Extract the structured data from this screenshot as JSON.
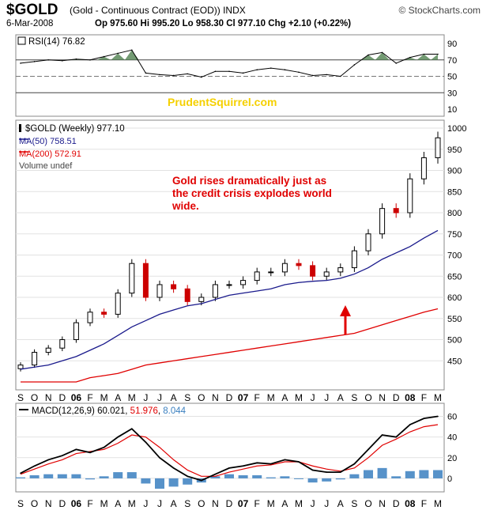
{
  "header": {
    "symbol": "$GOLD",
    "description": "(Gold - Continuous Contract (EOD)) INDX",
    "brand": "© StockCharts.com",
    "date": "6-Mar-2008",
    "quote": "Op 975.60   Hi 995.20   Lo 958.30   Cl 977.10   Chg +2.10 (+0.22%)"
  },
  "watermark": "PrudentSquirrel.com",
  "annotation": {
    "lines": [
      "Gold rises dramatically just as",
      "the credit crisis explodes world",
      "wide."
    ],
    "color": "#e00000"
  },
  "colors": {
    "up": "#000000",
    "down": "#cc0000",
    "ma50": "#1a1a8c",
    "ma200": "#e00000",
    "macd_line": "#000000",
    "signal_line": "#e00000",
    "hist": "#3a7fbf",
    "rsi_fill": "#5a8a5a"
  },
  "x_axis": {
    "labels": [
      "S",
      "O",
      "N",
      "D",
      "06",
      "F",
      "M",
      "A",
      "M",
      "J",
      "J",
      "A",
      "S",
      "O",
      "N",
      "D",
      "07",
      "F",
      "M",
      "A",
      "M",
      "J",
      "J",
      "A",
      "S",
      "O",
      "N",
      "D",
      "08",
      "F",
      "M"
    ]
  },
  "chart_data": [
    {
      "type": "line",
      "panel": "rsi",
      "legend": "RSI(14) 76.82",
      "y_ticks": [
        90,
        70,
        50,
        30,
        10
      ],
      "ylim": [
        0,
        100
      ],
      "reference_lines": [
        70,
        50,
        30
      ],
      "x": [
        "2005-09",
        "2005-10",
        "2005-11",
        "2005-12",
        "2006-01",
        "2006-02",
        "2006-03",
        "2006-04",
        "2006-05",
        "2006-06",
        "2006-07",
        "2006-08",
        "2006-09",
        "2006-10",
        "2006-11",
        "2006-12",
        "2007-01",
        "2007-02",
        "2007-03",
        "2007-04",
        "2007-05",
        "2007-06",
        "2007-07",
        "2007-08",
        "2007-09",
        "2007-10",
        "2007-11",
        "2007-12",
        "2008-01",
        "2008-02",
        "2008-03"
      ],
      "values": [
        66,
        68,
        70,
        69,
        71,
        70,
        74,
        78,
        82,
        54,
        52,
        51,
        53,
        49,
        56,
        56,
        54,
        58,
        60,
        58,
        55,
        51,
        52,
        50,
        64,
        76,
        79,
        66,
        73,
        77,
        77
      ]
    },
    {
      "type": "line",
      "panel": "price",
      "legend": [
        "$GOLD (Weekly) 977.10",
        "MA(50) 758.51",
        "MA(200) 572.91",
        "Volume undef"
      ],
      "y_ticks": [
        1000,
        950,
        900,
        850,
        800,
        750,
        700,
        650,
        600,
        550,
        500,
        450
      ],
      "ylim": [
        405,
        1005
      ],
      "x": [
        "2005-09",
        "2005-10",
        "2005-11",
        "2005-12",
        "2006-01",
        "2006-02",
        "2006-03",
        "2006-04",
        "2006-05",
        "2006-06",
        "2006-07",
        "2006-08",
        "2006-09",
        "2006-10",
        "2006-11",
        "2006-12",
        "2007-01",
        "2007-02",
        "2007-03",
        "2007-04",
        "2007-05",
        "2007-06",
        "2007-07",
        "2007-08",
        "2007-09",
        "2007-10",
        "2007-11",
        "2007-12",
        "2008-01",
        "2008-02",
        "2008-03"
      ],
      "series": [
        {
          "name": "$GOLD (Weekly) 977.10",
          "values": [
            440,
            470,
            480,
            500,
            540,
            565,
            560,
            610,
            680,
            600,
            630,
            620,
            590,
            600,
            630,
            630,
            640,
            660,
            660,
            680,
            675,
            650,
            660,
            670,
            710,
            750,
            810,
            800,
            880,
            930,
            977
          ]
        },
        {
          "name": "MA(50) 758.51",
          "values": [
            430,
            435,
            440,
            450,
            460,
            475,
            490,
            510,
            530,
            545,
            560,
            570,
            580,
            585,
            595,
            605,
            610,
            615,
            620,
            630,
            635,
            638,
            640,
            645,
            655,
            670,
            690,
            705,
            720,
            740,
            758
          ]
        },
        {
          "name": "MA(200) 572.91",
          "values": [
            380,
            385,
            390,
            395,
            400,
            410,
            415,
            420,
            430,
            440,
            445,
            450,
            455,
            460,
            465,
            470,
            475,
            480,
            485,
            490,
            495,
            500,
            505,
            510,
            515,
            525,
            535,
            545,
            555,
            565,
            573
          ]
        }
      ]
    },
    {
      "type": "line",
      "panel": "macd",
      "legend": {
        "label": "MACD(12,26,9)",
        "macd": "60.021",
        "signal": "51.976",
        "hist": "8.044"
      },
      "y_ticks": [
        60,
        40,
        20,
        0
      ],
      "ylim": [
        -10,
        65
      ],
      "x": [
        "2005-09",
        "2005-10",
        "2005-11",
        "2005-12",
        "2006-01",
        "2006-02",
        "2006-03",
        "2006-04",
        "2006-05",
        "2006-06",
        "2006-07",
        "2006-08",
        "2006-09",
        "2006-10",
        "2006-11",
        "2006-12",
        "2007-01",
        "2007-02",
        "2007-03",
        "2007-04",
        "2007-05",
        "2007-06",
        "2007-07",
        "2007-08",
        "2007-09",
        "2007-10",
        "2007-11",
        "2007-12",
        "2008-01",
        "2008-02",
        "2008-03"
      ],
      "series": [
        {
          "name": "MACD(12,26,9)",
          "values": [
            5,
            12,
            18,
            22,
            28,
            25,
            30,
            40,
            48,
            35,
            20,
            10,
            2,
            -2,
            4,
            10,
            12,
            15,
            14,
            18,
            16,
            8,
            6,
            6,
            14,
            28,
            42,
            40,
            52,
            58,
            60
          ]
        },
        {
          "name": "Signal",
          "values": [
            4,
            9,
            14,
            18,
            24,
            26,
            28,
            34,
            42,
            40,
            30,
            18,
            8,
            2,
            2,
            6,
            9,
            12,
            13,
            16,
            16,
            12,
            9,
            7,
            10,
            20,
            32,
            38,
            45,
            50,
            52
          ]
        },
        {
          "name": "Histogram",
          "values": [
            1,
            3,
            4,
            4,
            4,
            -1,
            2,
            6,
            6,
            -5,
            -10,
            -8,
            -6,
            -4,
            2,
            4,
            3,
            3,
            1,
            2,
            0,
            -4,
            -3,
            -1,
            4,
            8,
            10,
            2,
            7,
            8,
            8
          ]
        }
      ]
    }
  ]
}
